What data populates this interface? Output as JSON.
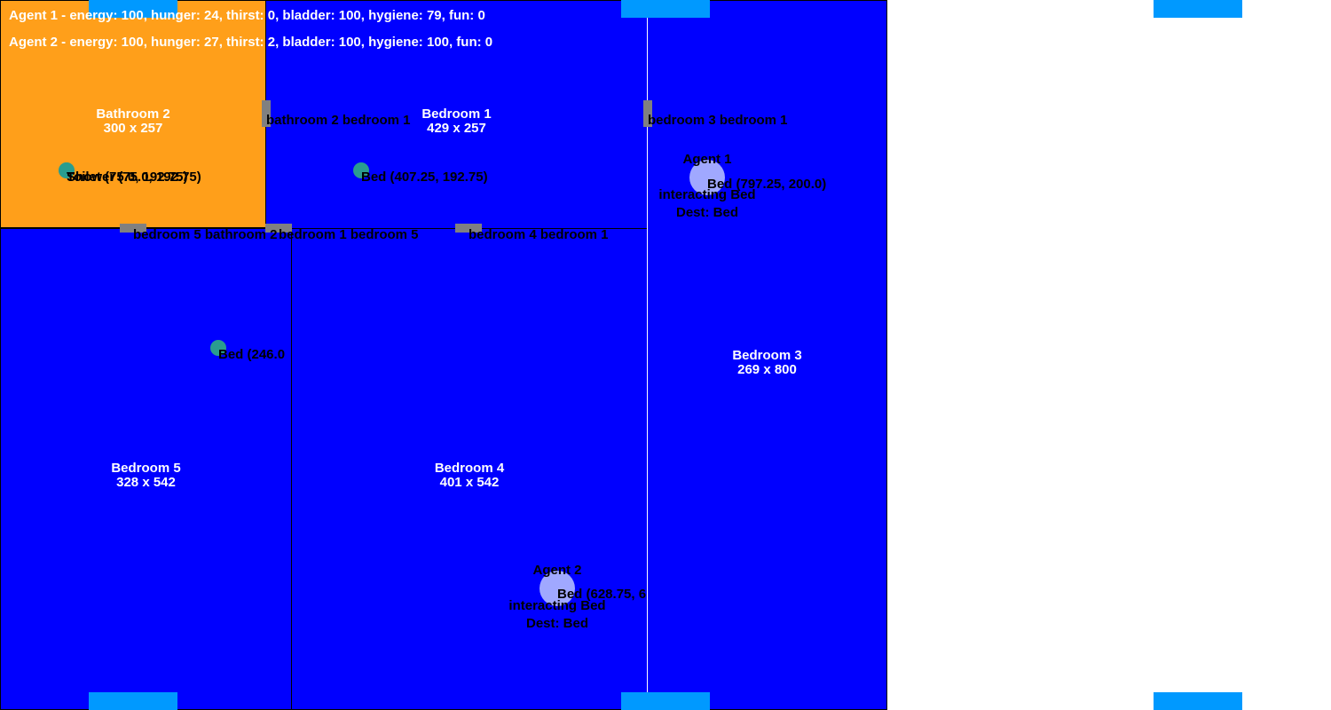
{
  "colors": {
    "bedroom": "#0000ff",
    "bathroom": "#ff9f1a",
    "door": "#808080",
    "object": "#2a9d8f",
    "agent": "#a0a8ff",
    "window": "#0099ff"
  },
  "status": {
    "agent1": "Agent 1 - energy: 100, hunger: 24, thirst: 0, bladder: 100, hygiene: 79, fun: 0",
    "agent2": "Agent 2 - energy: 100, hunger: 27, thirst: 2, bladder: 100, hygiene: 100, fun: 0"
  },
  "rooms": {
    "bathroom2": {
      "name": "Bathroom 2",
      "size": "300 x 257"
    },
    "bedroom1": {
      "name": "Bedroom 1",
      "size": "429 x 257"
    },
    "bedroom3": {
      "name": "Bedroom 3",
      "size": "269 x 800"
    },
    "bedroom5": {
      "name": "Bedroom 5",
      "size": "328 x 542"
    },
    "bedroom4": {
      "name": "Bedroom 4",
      "size": "401 x 542"
    }
  },
  "doors": {
    "bathroom2_bedroom1": "bathroom 2 bedroom 1",
    "bedroom3_bedroom1": "bedroom 3 bedroom 1",
    "bedroom5_bathroom2": "bedroom 5 bathroom 2",
    "bedroom1_bedroom5": "bedroom 1 bedroom 5",
    "bedroom4_bedroom1": "bedroom 4 bedroom 1"
  },
  "objects": {
    "toilet": "Toilet (75.0, 192.75)",
    "shower": "Shower (75.0, 192.75)",
    "bed_bedroom1": "Bed (407.25, 192.75)",
    "bed_bedroom5": "Bed (246.0",
    "bed_bedroom3": "Bed (797.25, 200.0)",
    "bed_bedroom4": "Bed (628.75, 6"
  },
  "agents": {
    "agent1": {
      "name": "Agent 1",
      "action": "interacting Bed",
      "dest": "Dest: Bed"
    },
    "agent2": {
      "name": "Agent 2",
      "action": "interacting Bed",
      "dest": "Dest: Bed"
    }
  }
}
